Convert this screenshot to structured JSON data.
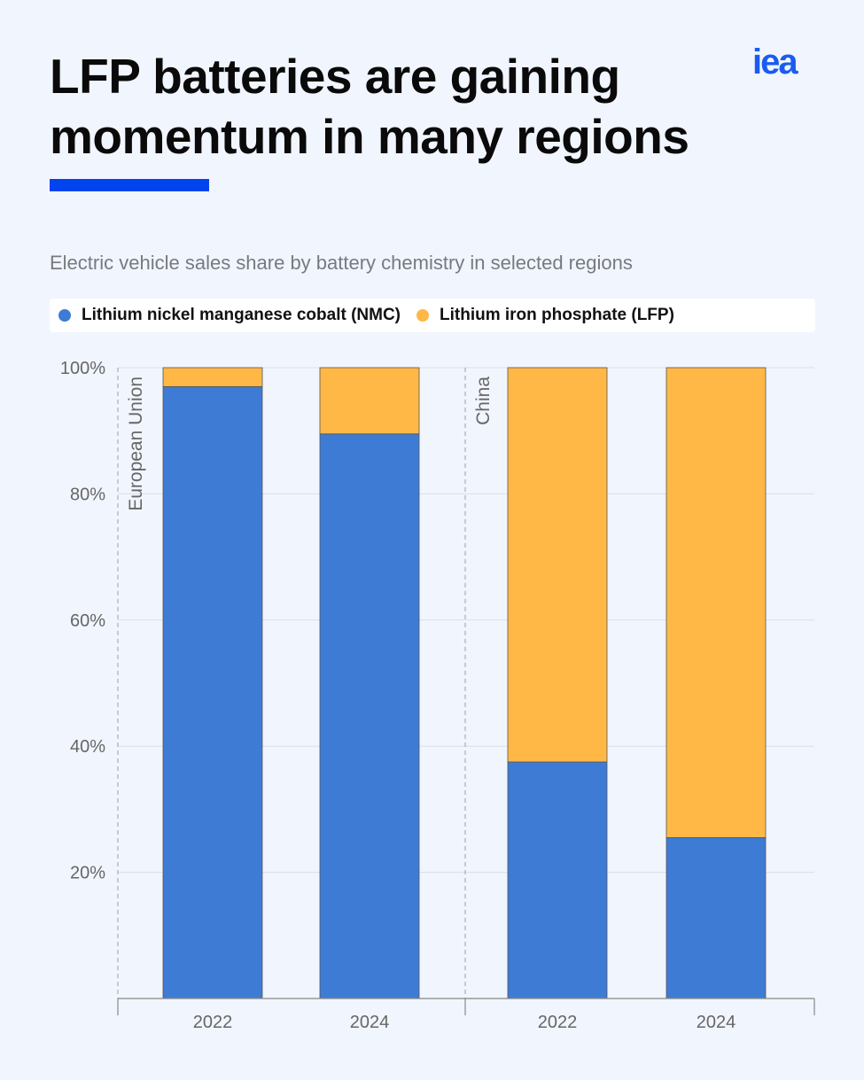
{
  "title": "LFP batteries are gaining momentum in many regions",
  "logo": "iea",
  "subtitle": "Electric vehicle sales share by battery chemistry in selected regions",
  "colors": {
    "accent": "#0044ee",
    "nmc": "#3e7bd4",
    "lfp": "#ffb845"
  },
  "chart_data": {
    "type": "bar",
    "stacked": true,
    "groups": [
      {
        "name": "European Union",
        "categories": [
          "2022",
          "2024"
        ]
      },
      {
        "name": "China",
        "categories": [
          "2022",
          "2024"
        ]
      }
    ],
    "series": [
      {
        "name": "Lithium nickel manganese cobalt (NMC)",
        "values": [
          97,
          89.5,
          37.5,
          25.5
        ]
      },
      {
        "name": "Lithium iron phosphate (LFP)",
        "values": [
          3,
          10.5,
          62.5,
          74.5
        ]
      }
    ],
    "y_ticks": [
      "20%",
      "40%",
      "60%",
      "80%",
      "100%"
    ],
    "y_tick_values": [
      20,
      40,
      60,
      80,
      100
    ],
    "ylim": [
      0,
      100
    ],
    "grid": true,
    "legend": "top"
  }
}
